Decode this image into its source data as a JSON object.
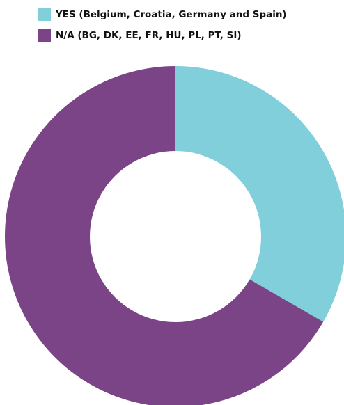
{
  "chart_data": {
    "type": "donut",
    "categories": [
      "YES (Belgium, Croatia, Germany and Spain)",
      "N/A (BG, DK, EE, FR, HU, PL, PT, SI)"
    ],
    "values": [
      4,
      8
    ],
    "colors": [
      "#80cfdb",
      "#7b4486"
    ],
    "legend": "top-left"
  }
}
